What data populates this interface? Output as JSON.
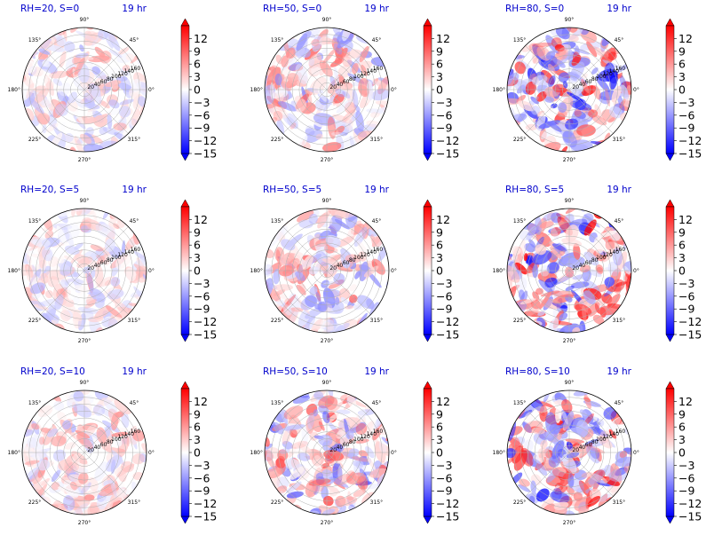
{
  "figure": {
    "colors": {
      "title_text": "#0000cc",
      "axis_line": "#000000",
      "grid": "#b0b0b0",
      "negative": "#0000ff",
      "zero": "#ffffff",
      "positive": "#ff0000"
    }
  },
  "chart_data": [
    {
      "type": "heatmap",
      "projection": "polar",
      "title_left": "RH=20, S=0",
      "title_right": "19 hr",
      "angle_ticks": [
        "90°",
        "45°",
        "0°",
        "315°",
        "270°",
        "225°",
        "180°",
        "135°"
      ],
      "radial_ticks": [
        "20",
        "40",
        "60",
        "80",
        "100",
        "120",
        "140",
        "160"
      ],
      "rlim": [
        0,
        180
      ],
      "colorbar": {
        "ticks": [
          12,
          9,
          6,
          3,
          0,
          -3,
          -6,
          -9,
          -12,
          -15
        ],
        "range": [
          -15,
          15
        ],
        "extend": "both",
        "cmap": "bwr"
      },
      "field": {
        "intensity": 0.25,
        "bias": 0.15
      }
    },
    {
      "type": "heatmap",
      "projection": "polar",
      "title_left": "RH=50, S=0",
      "title_right": "19 hr",
      "angle_ticks": [
        "90°",
        "45°",
        "0°",
        "315°",
        "270°",
        "225°",
        "180°",
        "135°"
      ],
      "radial_ticks": [
        "20",
        "40",
        "60",
        "80",
        "100",
        "120",
        "140",
        "160"
      ],
      "rlim": [
        0,
        180
      ],
      "colorbar": {
        "ticks": [
          12,
          9,
          6,
          3,
          0,
          -3,
          -6,
          -9,
          -12,
          -15
        ],
        "range": [
          -15,
          15
        ],
        "extend": "both",
        "cmap": "bwr"
      },
      "field": {
        "intensity": 0.35,
        "bias": 0.1
      }
    },
    {
      "type": "heatmap",
      "projection": "polar",
      "title_left": "RH=80, S=0",
      "title_right": "19 hr",
      "angle_ticks": [
        "90°",
        "45°",
        "0°",
        "315°",
        "270°",
        "225°",
        "180°",
        "135°"
      ],
      "radial_ticks": [
        "20",
        "40",
        "60",
        "80",
        "100",
        "120",
        "140",
        "160"
      ],
      "rlim": [
        0,
        180
      ],
      "colorbar": {
        "ticks": [
          12,
          9,
          6,
          3,
          0,
          -3,
          -6,
          -9,
          -12,
          -15
        ],
        "range": [
          -15,
          15
        ],
        "extend": "both",
        "cmap": "bwr"
      },
      "field": {
        "intensity": 0.6,
        "bias": 0.0
      }
    },
    {
      "type": "heatmap",
      "projection": "polar",
      "title_left": "RH=20, S=5",
      "title_right": "19 hr",
      "angle_ticks": [
        "90°",
        "45°",
        "0°",
        "315°",
        "270°",
        "225°",
        "180°",
        "135°"
      ],
      "radial_ticks": [
        "20",
        "40",
        "60",
        "80",
        "100",
        "120",
        "140",
        "160"
      ],
      "rlim": [
        0,
        180
      ],
      "colorbar": {
        "ticks": [
          12,
          9,
          6,
          3,
          0,
          -3,
          -6,
          -9,
          -12,
          -15
        ],
        "range": [
          -15,
          15
        ],
        "extend": "both",
        "cmap": "bwr"
      },
      "field": {
        "intensity": 0.22,
        "bias": 0.15
      }
    },
    {
      "type": "heatmap",
      "projection": "polar",
      "title_left": "RH=50, S=5",
      "title_right": "19 hr",
      "angle_ticks": [
        "90°",
        "45°",
        "0°",
        "315°",
        "270°",
        "225°",
        "180°",
        "135°"
      ],
      "radial_ticks": [
        "20",
        "40",
        "60",
        "80",
        "100",
        "120",
        "140",
        "160"
      ],
      "rlim": [
        0,
        180
      ],
      "colorbar": {
        "ticks": [
          12,
          9,
          6,
          3,
          0,
          -3,
          -6,
          -9,
          -12,
          -15
        ],
        "range": [
          -15,
          15
        ],
        "extend": "both",
        "cmap": "bwr"
      },
      "field": {
        "intensity": 0.35,
        "bias": 0.1
      }
    },
    {
      "type": "heatmap",
      "projection": "polar",
      "title_left": "RH=80, S=5",
      "title_right": "19 hr",
      "angle_ticks": [
        "90°",
        "45°",
        "0°",
        "315°",
        "270°",
        "225°",
        "180°",
        "135°"
      ],
      "radial_ticks": [
        "20",
        "40",
        "60",
        "80",
        "100",
        "120",
        "140",
        "160"
      ],
      "rlim": [
        0,
        180
      ],
      "colorbar": {
        "ticks": [
          12,
          9,
          6,
          3,
          0,
          -3,
          -6,
          -9,
          -12,
          -15
        ],
        "range": [
          -15,
          15
        ],
        "extend": "both",
        "cmap": "bwr"
      },
      "field": {
        "intensity": 0.6,
        "bias": 0.05
      }
    },
    {
      "type": "heatmap",
      "projection": "polar",
      "title_left": "RH=20, S=10",
      "title_right": "19 hr",
      "angle_ticks": [
        "90°",
        "45°",
        "0°",
        "315°",
        "270°",
        "225°",
        "180°",
        "135°"
      ],
      "radial_ticks": [
        "20",
        "40",
        "60",
        "80",
        "100",
        "120",
        "140",
        "160"
      ],
      "rlim": [
        0,
        180
      ],
      "colorbar": {
        "ticks": [
          12,
          9,
          6,
          3,
          0,
          -3,
          -6,
          -9,
          -12,
          -15
        ],
        "range": [
          -15,
          15
        ],
        "extend": "both",
        "cmap": "bwr"
      },
      "field": {
        "intensity": 0.25,
        "bias": 0.15
      }
    },
    {
      "type": "heatmap",
      "projection": "polar",
      "title_left": "RH=50, S=10",
      "title_right": "19 hr",
      "angle_ticks": [
        "90°",
        "45°",
        "0°",
        "315°",
        "270°",
        "225°",
        "180°",
        "135°"
      ],
      "radial_ticks": [
        "20",
        "40",
        "60",
        "80",
        "100",
        "120",
        "140",
        "160"
      ],
      "rlim": [
        0,
        180
      ],
      "colorbar": {
        "ticks": [
          12,
          9,
          6,
          3,
          0,
          -3,
          -6,
          -9,
          -12,
          -15
        ],
        "range": [
          -15,
          15
        ],
        "extend": "both",
        "cmap": "bwr"
      },
      "field": {
        "intensity": 0.45,
        "bias": 0.0
      }
    },
    {
      "type": "heatmap",
      "projection": "polar",
      "title_left": "RH=80, S=10",
      "title_right": "19 hr",
      "angle_ticks": [
        "90°",
        "45°",
        "0°",
        "315°",
        "270°",
        "225°",
        "180°",
        "135°"
      ],
      "radial_ticks": [
        "20",
        "40",
        "60",
        "80",
        "100",
        "120",
        "140",
        "160"
      ],
      "rlim": [
        0,
        180
      ],
      "colorbar": {
        "ticks": [
          12,
          9,
          6,
          3,
          0,
          -3,
          -6,
          -9,
          -12,
          -15
        ],
        "range": [
          -15,
          15
        ],
        "extend": "both",
        "cmap": "bwr"
      },
      "field": {
        "intensity": 0.6,
        "bias": 0.0
      }
    }
  ]
}
